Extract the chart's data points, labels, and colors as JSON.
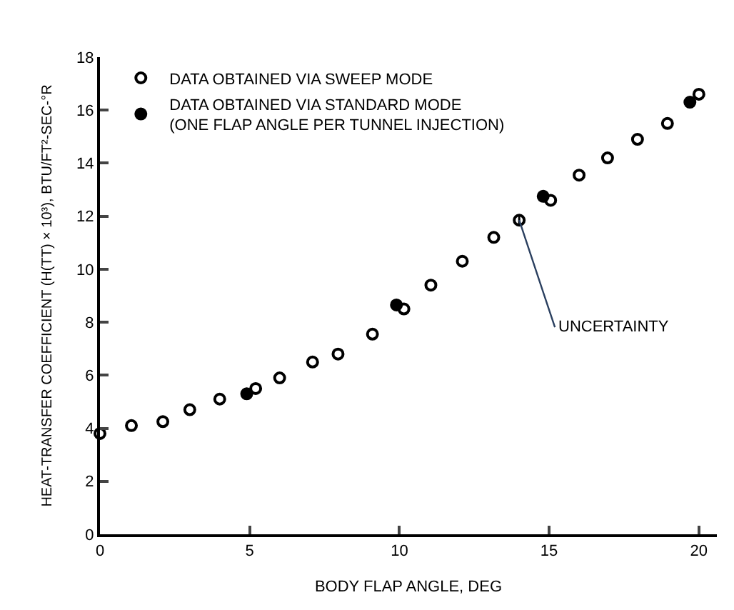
{
  "chart_data": {
    "type": "scatter",
    "xlabel": "BODY FLAP ANGLE, DEG",
    "ylabel": "HEAT-TRANSFER COEFFICIENT (H(TT) × 10³), BTU/FT²-SEC-°R",
    "xlim": [
      0,
      20.6
    ],
    "xticks": [
      0,
      5,
      10,
      15,
      20
    ],
    "ylim": [
      0,
      18
    ],
    "yticks": [
      0,
      2,
      4,
      6,
      8,
      10,
      12,
      14,
      16,
      18
    ],
    "legend": "top left",
    "marker": "circle",
    "series": [
      {
        "name": "DATA OBTAINED VIA SWEEP MODE",
        "color": "#000000",
        "x": [
          0,
          1.05,
          2.1,
          3.0,
          4.0,
          5.2,
          6.0,
          7.1,
          7.95,
          9.1,
          10.15,
          11.05,
          12.1,
          13.15,
          14.0,
          15.05,
          16.0,
          16.95,
          17.95,
          18.95,
          20.0
        ],
        "values": [
          3.8,
          4.1,
          4.25,
          4.7,
          5.1,
          5.5,
          5.9,
          6.5,
          6.8,
          7.55,
          8.5,
          9.4,
          10.3,
          11.2,
          11.85,
          12.6,
          13.55,
          14.2,
          14.9,
          15.5,
          16.6
        ],
        "errors": [
          null,
          null,
          null,
          null,
          null,
          null,
          null,
          null,
          null,
          null,
          null,
          null,
          null,
          null,
          0.2,
          null,
          null,
          null,
          null,
          null,
          null
        ]
      },
      {
        "name": "DATA OBTAINED VIA STANDARD MODE\n(ONE FLAP ANGLE PER TUNNEL INJECTION)",
        "color": "#000000",
        "x": [
          4.9,
          9.9,
          14.8,
          19.7
        ],
        "values": [
          5.3,
          8.65,
          12.75,
          16.3
        ]
      }
    ],
    "annotations": [
      {
        "text": "UNCERTAINTY",
        "x": 14.0,
        "y": 11.85
      }
    ]
  }
}
